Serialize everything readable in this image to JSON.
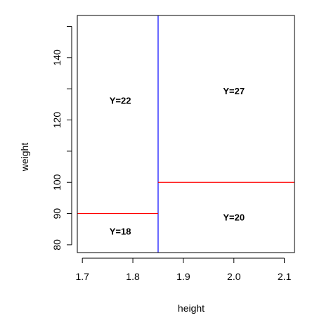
{
  "chart_data": {
    "type": "partition",
    "title": "",
    "xlabel": "height",
    "ylabel": "weight",
    "xlim": [
      1.69,
      2.12
    ],
    "ylim": [
      77.5,
      153.5
    ],
    "x_ticks": [
      1.7,
      1.8,
      1.9,
      2.0,
      2.1
    ],
    "x_tick_labels": [
      "1.7",
      "1.8",
      "1.9",
      "2.0",
      "2.1"
    ],
    "y_ticks": [
      80,
      90,
      100,
      110,
      120,
      130,
      140,
      150
    ],
    "y_tick_labels": [
      "80",
      "90",
      "100",
      "",
      "120",
      "",
      "140",
      ""
    ],
    "splits": [
      {
        "axis": "x",
        "value": 1.85,
        "y_from": 77.5,
        "y_to": 153.5,
        "color": "#0000ff"
      },
      {
        "axis": "y",
        "value": 90,
        "x_from": 1.69,
        "x_to": 1.85,
        "color": "#ff0000"
      },
      {
        "axis": "y",
        "value": 100,
        "x_from": 1.85,
        "x_to": 2.12,
        "color": "#ff0000"
      }
    ],
    "regions": [
      {
        "label": "Y=22",
        "x": 1.775,
        "y": 126
      },
      {
        "label": "Y=18",
        "x": 1.775,
        "y": 84
      },
      {
        "label": "Y=27",
        "x": 2.0,
        "y": 129
      },
      {
        "label": "Y=20",
        "x": 2.0,
        "y": 88.5
      }
    ]
  }
}
